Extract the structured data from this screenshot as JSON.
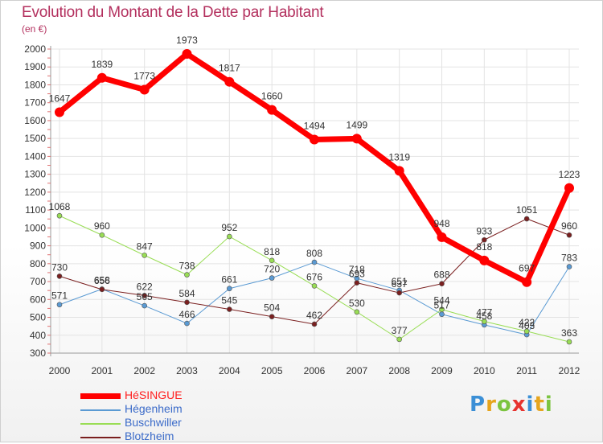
{
  "title": "Evolution du Montant de la Dette par Habitant",
  "subtitle": "(en €)",
  "logo": {
    "text": "Proxiti",
    "letters": [
      {
        "ch": "P",
        "color": "#3b8fd6"
      },
      {
        "ch": "r",
        "color": "#e6a51e"
      },
      {
        "ch": "o",
        "color": "#7cc440"
      },
      {
        "ch": "x",
        "color": "#e7332f"
      },
      {
        "ch": "i",
        "color": "#3b8fd6"
      },
      {
        "ch": "t",
        "color": "#e6a51e"
      },
      {
        "ch": "i",
        "color": "#7cc440"
      }
    ]
  },
  "chart_data": {
    "type": "line",
    "title": "Evolution du Montant de la Dette par Habitant",
    "subtitle": "(en €)",
    "x": [
      2000,
      2001,
      2002,
      2003,
      2004,
      2005,
      2006,
      2007,
      2008,
      2009,
      2010,
      2011,
      2012
    ],
    "ylim": [
      300,
      2000
    ],
    "yticks": [
      300,
      400,
      500,
      600,
      700,
      800,
      900,
      1000,
      1100,
      1200,
      1300,
      1400,
      1500,
      1600,
      1700,
      1800,
      1900,
      2000
    ],
    "grid": true,
    "legend_position": "bottom-left",
    "series": [
      {
        "name": "HéSINGUE",
        "color": "#ff0000",
        "width": 7,
        "marker": 6,
        "values": [
          1647,
          1839,
          1773,
          1973,
          1817,
          1660,
          1494,
          1499,
          1319,
          948,
          818,
          697,
          1223
        ]
      },
      {
        "name": "Hégenheim",
        "color": "#5a9ad3",
        "width": 1,
        "marker": 3,
        "values": [
          571,
          658,
          565,
          466,
          661,
          720,
          808,
          718,
          651,
          517,
          458,
          403,
          783
        ]
      },
      {
        "name": "Buschwiller",
        "color": "#99dd55",
        "width": 1,
        "marker": 3,
        "values": [
          1068,
          960,
          847,
          738,
          952,
          818,
          676,
          530,
          377,
          544,
          477,
          422,
          363
        ]
      },
      {
        "name": "Blotzheim",
        "color": "#7a1f1f",
        "width": 1,
        "marker": 3,
        "values": [
          730,
          656,
          622,
          584,
          545,
          504,
          462,
          693,
          637,
          688,
          933,
          1051,
          960
        ]
      }
    ]
  }
}
